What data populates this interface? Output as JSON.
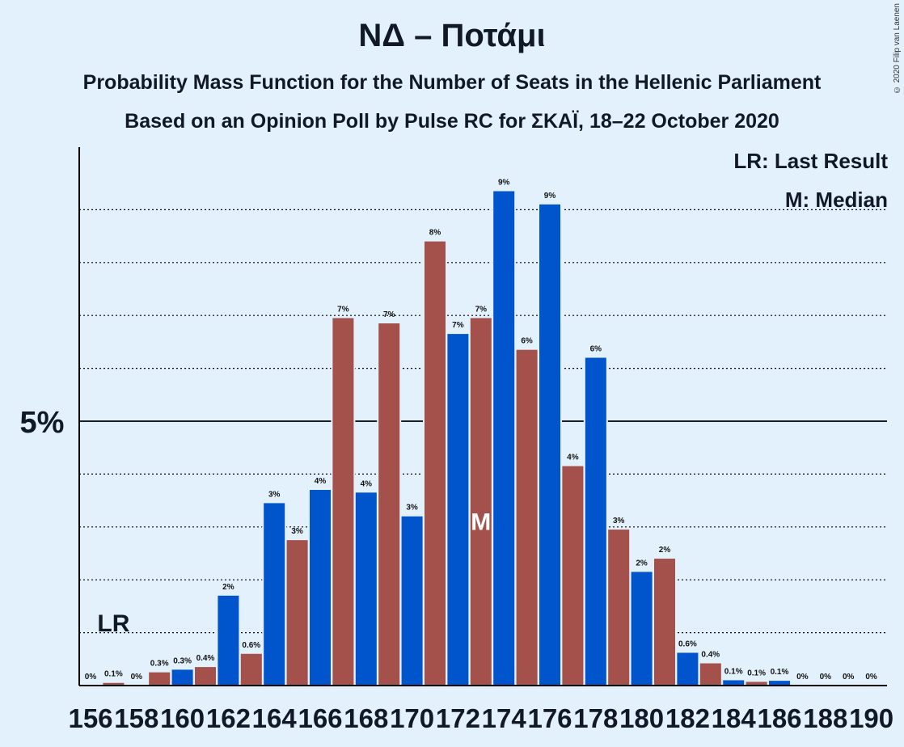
{
  "title": "ΝΔ – Ποτάμι",
  "subtitle1": "Probability Mass Function for the Number of Seats in the Hellenic Parliament",
  "subtitle2": "Based on an Opinion Poll by Pulse RC for ΣΚΑΪ, 18–22 October 2020",
  "copyright": "© 2020 Filip van Laenen",
  "legend": {
    "lr": "LR: Last Result",
    "m": "M: Median"
  },
  "colors": {
    "blue": "#0055cc",
    "red": "#a3514a",
    "background": "#e3f1fd",
    "axis": "#000000"
  },
  "chart_data": {
    "type": "bar",
    "x": [
      156,
      157,
      158,
      159,
      160,
      161,
      162,
      163,
      164,
      165,
      166,
      167,
      168,
      169,
      170,
      171,
      172,
      173,
      174,
      175,
      176,
      177,
      178,
      179,
      180,
      181,
      182,
      183,
      184,
      185,
      186,
      187,
      188,
      189,
      190
    ],
    "values": [
      0,
      0.05,
      0,
      0.25,
      0.3,
      0.35,
      1.7,
      0.6,
      3.45,
      2.75,
      3.7,
      6.95,
      3.65,
      6.85,
      3.2,
      8.4,
      6.65,
      6.95,
      9.35,
      6.35,
      9.1,
      4.15,
      6.2,
      2.95,
      2.15,
      2.4,
      0.62,
      0.42,
      0.1,
      0.07,
      0.09,
      0,
      0,
      0,
      0
    ],
    "labels": [
      "0%",
      "0.1%",
      "0%",
      "0.3%",
      "0.3%",
      "0.4%",
      "2%",
      "0.6%",
      "3%",
      "3%",
      "4%",
      "7%",
      "4%",
      "7%",
      "3%",
      "8%",
      "7%",
      "7%",
      "9%",
      "6%",
      "9%",
      "4%",
      "6%",
      "3%",
      "2%",
      "2%",
      "0.6%",
      "0.4%",
      "0.1%",
      "0.1%",
      "0.1%",
      "0%",
      "0%",
      "0%",
      "0%"
    ],
    "tick_labels": [
      "156",
      "158",
      "160",
      "162",
      "164",
      "166",
      "168",
      "170",
      "172",
      "174",
      "176",
      "178",
      "180",
      "182",
      "184",
      "186",
      "188",
      "190"
    ],
    "y_tick_label": "5%",
    "ylim": [
      0,
      10.3
    ],
    "last_result": {
      "seats": 157,
      "label": "LR"
    },
    "median": {
      "seats": 173,
      "label": "M"
    },
    "grid": true
  }
}
